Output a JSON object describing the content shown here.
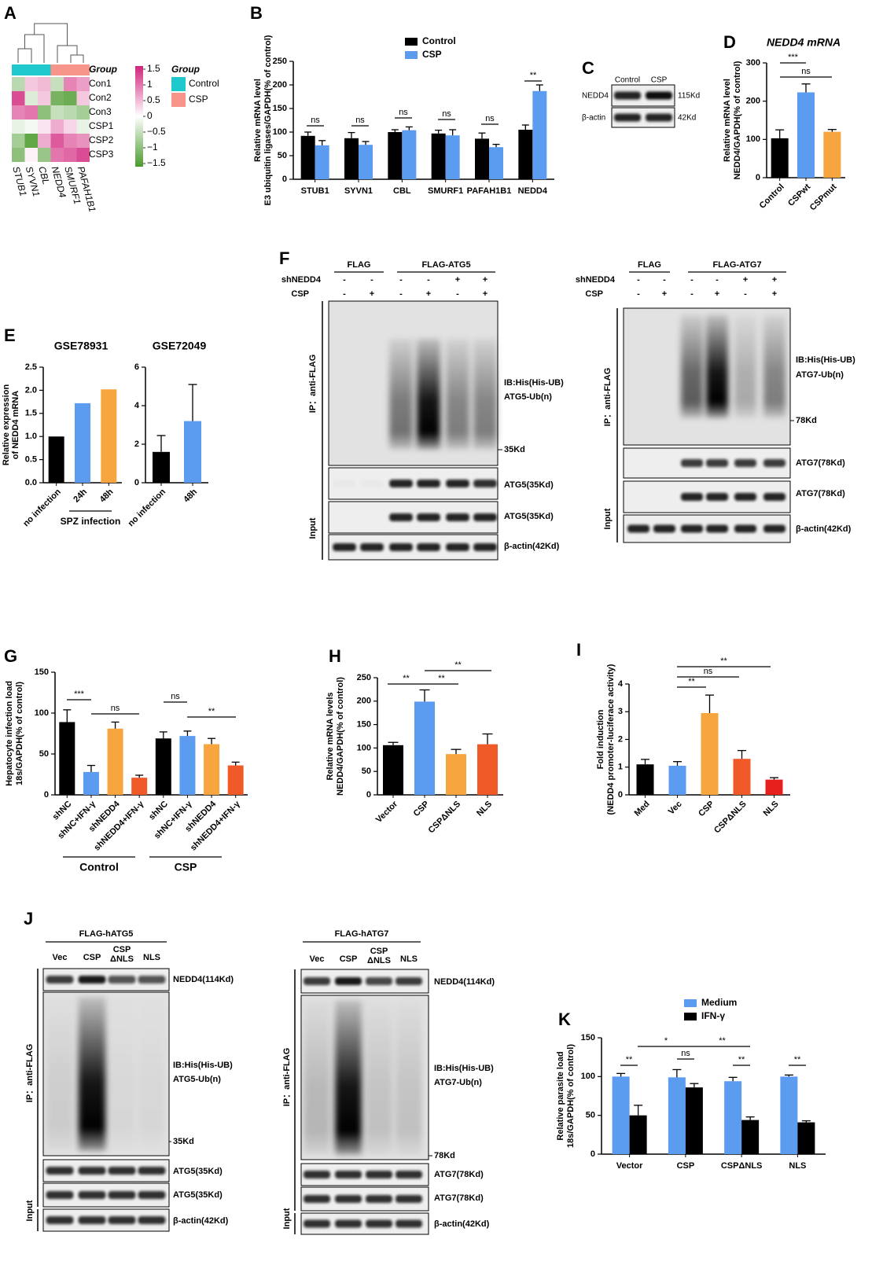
{
  "panel_labels": [
    "A",
    "B",
    "C",
    "D",
    "E",
    "F",
    "G",
    "H",
    "I",
    "J",
    "K"
  ],
  "chart_data": [
    {
      "type": "heatmap",
      "rows": [
        "Con1",
        "Con2",
        "Con3",
        "CSP1",
        "CSP2",
        "CSP3"
      ],
      "columns": [
        "STUB1",
        "SYVN1",
        "CBL",
        "NEDD4",
        "SMURF1",
        "PAFAH1B1"
      ],
      "values": [
        [
          -0.6,
          0.4,
          0.5,
          -0.5,
          0.9,
          0.7
        ],
        [
          1.3,
          -0.3,
          0.4,
          -1.2,
          -1.3,
          0.4
        ],
        [
          0.9,
          1.0,
          -1.0,
          -0.5,
          -0.6,
          -0.8
        ],
        [
          -0.2,
          -0.1,
          0.2,
          0.6,
          0.3,
          -0.2
        ],
        [
          -0.8,
          -1.4,
          0.6,
          1.2,
          0.9,
          0.8
        ],
        [
          -1.0,
          0.1,
          -0.9,
          1.0,
          1.1,
          1.3
        ]
      ],
      "column_colors": [
        "#1fc8cc",
        "#1fc8cc",
        "#1fc8cc",
        "#f7958a",
        "#f7958a",
        "#f7958a"
      ],
      "group_title": "Group",
      "legend_title": "Group",
      "groups": [
        {
          "name": "Control",
          "color": "#1fc8cc"
        },
        {
          "name": "CSP",
          "color": "#f7958a"
        }
      ],
      "low_color": "#4a9a2c",
      "high_color": "#d1247c",
      "colorbar_lim": [
        -1.6,
        1.6
      ],
      "colorbar_ticks": [
        1.5,
        1,
        0.5,
        0,
        {
          "value": -0.5,
          "label": "−0.5"
        },
        {
          "value": -1,
          "label": "−1"
        },
        {
          "value": -1.5,
          "label": "−1.5"
        }
      ]
    },
    {
      "type": "bar",
      "ylabel": [
        "Relative mRNA level",
        "E3 ubiquitin ligases/GAPDH(% of control)"
      ],
      "categories": [
        "STUB1",
        "SYVN1",
        "CBL",
        "SMURF1",
        "PAFAH1B1",
        "NEDD4"
      ],
      "series": [
        {
          "name": "Control",
          "color": "#000000",
          "values": [
            92,
            87,
            100,
            97,
            86,
            105
          ],
          "errors": [
            8,
            12,
            5,
            7,
            12,
            10
          ]
        },
        {
          "name": "CSP",
          "color": "#5b9bf0",
          "values": [
            72,
            73,
            104,
            93,
            68,
            187
          ],
          "errors": [
            10,
            7,
            7,
            12,
            6,
            13
          ]
        }
      ],
      "ylim": [
        0,
        250
      ],
      "yticks": [
        0,
        50,
        100,
        150,
        200,
        250
      ],
      "annotations": [
        "ns",
        "ns",
        "ns",
        "ns",
        "ns",
        "**"
      ]
    },
    {
      "type": "bar",
      "title": "NEDD4 mRNA",
      "ylabel": [
        "Relative mRNA level",
        "NEDD4/GAPDH(% of control)"
      ],
      "categories": [
        "Control",
        "CSPwt",
        "CSPmut"
      ],
      "values": [
        103,
        223,
        120
      ],
      "errors": [
        22,
        22,
        6
      ],
      "colors": [
        "#000000",
        "#5b9bf0",
        "#f7a53e"
      ],
      "ylim": [
        0,
        300
      ],
      "yticks": [
        0,
        100,
        200,
        300
      ],
      "annotations": [
        "***",
        "ns"
      ]
    },
    {
      "type": "bar",
      "title": "GSE78931",
      "ylabel": [
        "Relative expression",
        "of NEDD4 mRNA"
      ],
      "categories": [
        "no infection",
        "24h",
        "48h"
      ],
      "values": [
        1.0,
        1.72,
        2.02
      ],
      "colors": [
        "#000000",
        "#5b9bf0",
        "#f7a53e"
      ],
      "ylim": [
        0,
        2.5
      ],
      "yticks": [
        {
          "value": 0,
          "label": "0.0"
        },
        {
          "value": 0.5,
          "label": "0.5"
        },
        {
          "value": 1,
          "label": "1.0"
        },
        {
          "value": 1.5,
          "label": "1.5"
        },
        {
          "value": 2,
          "label": "2.0"
        },
        {
          "value": 2.5,
          "label": "2.5"
        }
      ],
      "groups": [
        "SPZ infection"
      ]
    },
    {
      "type": "bar",
      "title": "GSE72049",
      "categories": [
        "no infection",
        "48h"
      ],
      "values": [
        1.6,
        3.2
      ],
      "errors": [
        0.85,
        1.9
      ],
      "colors": [
        "#000000",
        "#5b9bf0"
      ],
      "ylim": [
        0,
        6
      ],
      "yticks": [
        0,
        2,
        4,
        6
      ]
    },
    {
      "type": "bar",
      "ylabel": [
        "Hepatocyte infection load",
        "18s/GAPDH(% of control)"
      ],
      "categories": [
        "shNC",
        "shNC+IFN-γ",
        "shNEDD4",
        "shNEDD4+IFN-γ",
        "shNC",
        "shNC+IFN-γ",
        "shNEDD4",
        "shNEDD4+IFN-γ"
      ],
      "values": [
        89,
        28,
        81,
        21,
        69,
        72,
        62,
        36
      ],
      "errors": [
        15,
        8,
        8,
        3,
        8,
        6,
        7,
        4
      ],
      "colors": [
        "#000000",
        "#5b9bf0",
        "#f7a53e",
        "#f05a28",
        "#000000",
        "#5b9bf0",
        "#f7a53e",
        "#f05a28"
      ],
      "ylim": [
        0,
        150
      ],
      "yticks": [
        0,
        50,
        100,
        150
      ],
      "annotations": [
        "***",
        "ns",
        "ns",
        "**"
      ],
      "groups": [
        "Control",
        "CSP"
      ]
    },
    {
      "type": "bar",
      "ylabel": [
        "Relative mRNA levels",
        "NEDD4/GAPDH(% of control)"
      ],
      "categories": [
        "Vector",
        "CSP",
        "CSPΔNLS",
        "NLS"
      ],
      "values": [
        106,
        199,
        87,
        108
      ],
      "errors": [
        6,
        25,
        10,
        22
      ],
      "colors": [
        "#000000",
        "#5b9bf0",
        "#f7a53e",
        "#f05a28"
      ],
      "ylim": [
        0,
        250
      ],
      "yticks": [
        0,
        50,
        100,
        150,
        200,
        250
      ],
      "annotations": [
        "**",
        "**",
        "**"
      ]
    },
    {
      "type": "bar",
      "ylabel": [
        "Fold induction",
        "(NEDD4 promoter-luciferace activity)"
      ],
      "categories": [
        "Med",
        "Vec",
        "CSP",
        "CSPΔNLS",
        "NLS"
      ],
      "values": [
        1.1,
        1.05,
        2.95,
        1.3,
        0.55
      ],
      "errors": [
        0.18,
        0.15,
        0.65,
        0.3,
        0.07
      ],
      "colors": [
        "#000000",
        "#5b9bf0",
        "#f7a53e",
        "#f05a28",
        "#e8201d"
      ],
      "ylim": [
        0,
        4
      ],
      "yticks": [
        0,
        1,
        2,
        3,
        4
      ],
      "annotations": [
        "**",
        "ns",
        "**"
      ]
    },
    {
      "type": "bar",
      "ylabel": [
        "Relative parasite load",
        "18s/GAPDH(% of control)"
      ],
      "categories": [
        "Vector",
        "CSP",
        "CSPΔNLS",
        "NLS"
      ],
      "series": [
        {
          "name": "Medium",
          "color": "#5b9bf0",
          "values": [
            100,
            99,
            94,
            100
          ],
          "errors": [
            4,
            10,
            5,
            2
          ]
        },
        {
          "name": "IFN-γ",
          "color": "#000000",
          "values": [
            50,
            86,
            44,
            41
          ],
          "errors": [
            13,
            5,
            4,
            2
          ]
        }
      ],
      "ylim": [
        0,
        150
      ],
      "yticks": [
        0,
        50,
        100,
        150
      ],
      "annotations": [
        "**",
        "*",
        "ns",
        "**",
        "**",
        "**"
      ]
    }
  ],
  "blot_c": {
    "lanes": [
      "Control",
      "CSP"
    ],
    "row_labels": [
      "NEDD4",
      "β-actin"
    ],
    "size_labels": [
      "115Kd",
      "42Kd"
    ]
  },
  "blot_f_atg5": {
    "groups": [
      "FLAG",
      "FLAG-ATG5"
    ],
    "row_labels": [
      "shNEDD4",
      "CSP"
    ],
    "signs": [
      [
        "-",
        "-",
        "-",
        "-",
        "+",
        "+"
      ],
      [
        "-",
        "+",
        "-",
        "+",
        "-",
        "+"
      ]
    ],
    "side_labels": [
      "IP：anti-FLAG",
      "Input"
    ],
    "band_labels": [
      "IB:His(His-UB)",
      "ATG5-Ub(n)",
      "35Kd",
      "ATG5(35Kd)",
      "ATG5(35Kd)",
      "β-actin(42Kd)"
    ]
  },
  "blot_f_atg7": {
    "groups": [
      "FLAG",
      "FLAG-ATG7"
    ],
    "row_labels": [
      "shNEDD4",
      "CSP"
    ],
    "signs": [
      [
        "-",
        "-",
        "-",
        "-",
        "+",
        "+"
      ],
      [
        "-",
        "+",
        "-",
        "+",
        "-",
        "+"
      ]
    ],
    "side_labels": [
      "IP：anti-FLAG",
      "Input"
    ],
    "band_labels": [
      "IB:His(His-UB)",
      "ATG7-Ub(n)",
      "78Kd",
      "ATG7(78Kd)",
      "ATG7(78Kd)",
      "β-actin(42Kd)"
    ]
  },
  "blot_j_atg5": {
    "group": "FLAG-hATG5",
    "lanes": [
      "Vec",
      "CSP",
      [
        "CSP",
        "ΔNLS"
      ],
      "NLS"
    ],
    "side_labels": [
      "IP：anti-FLAG",
      "Input"
    ],
    "band_labels": [
      "NEDD4(114Kd)",
      "IB:His(His-UB)",
      "ATG5-Ub(n)",
      "35Kd",
      "ATG5(35Kd)",
      "ATG5(35Kd)",
      "β-actin(42Kd)"
    ]
  },
  "blot_j_atg7": {
    "group": "FLAG-hATG7",
    "lanes": [
      "Vec",
      "CSP",
      [
        "CSP",
        "ΔNLS"
      ],
      "NLS"
    ],
    "side_labels": [
      "IP：anti-FLAG",
      "Input"
    ],
    "band_labels": [
      "NEDD4(114Kd)",
      "IB:His(His-UB)",
      "ATG7-Ub(n)",
      "78Kd",
      "ATG7(78Kd)",
      "ATG7(78Kd)",
      "β-actin(42Kd)"
    ]
  }
}
